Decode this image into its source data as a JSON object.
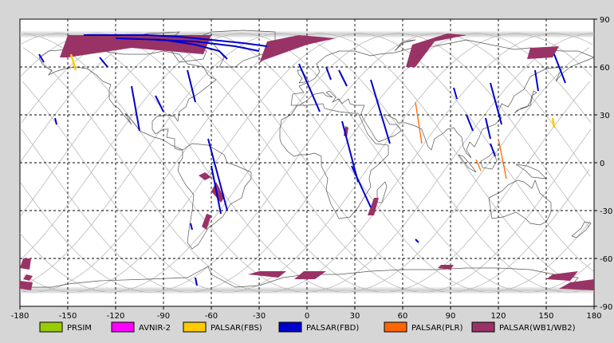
{
  "map": {
    "lon_range": [
      -180,
      180
    ],
    "lat_range": [
      -90,
      90
    ],
    "x_ticks": [
      -180,
      -150,
      -120,
      -90,
      -60,
      -30,
      0,
      30,
      60,
      90,
      120,
      150,
      180
    ],
    "y_ticks": [
      90,
      60,
      30,
      0,
      -30,
      -60,
      -90
    ],
    "grid": "dashed",
    "background": "#ffffff",
    "coastline_color": "#555555",
    "orbit_color": "#b8b8b8"
  },
  "legend": {
    "placement": "bottom",
    "items": [
      {
        "label": "PRSIM",
        "color": "#99cc00"
      },
      {
        "label": "AVNIR-2",
        "color": "#ff00ff"
      },
      {
        "label": "PALSAR(FBS)",
        "color": "#ffcc00"
      },
      {
        "label": "PALSAR(FBD)",
        "color": "#0000cc"
      },
      {
        "label": "PALSAR(PLR)",
        "color": "#ff6600"
      },
      {
        "label": "PALSAR(WB1/WB2)",
        "color": "#993366"
      }
    ]
  },
  "observations": {
    "wb": [
      [
        [
          -155,
          66
        ],
        [
          -150,
          80
        ],
        [
          -60,
          80
        ],
        [
          -65,
          68
        ],
        [
          -110,
          72
        ],
        [
          -150,
          66
        ]
      ],
      [
        [
          -30,
          62
        ],
        [
          -25,
          76
        ],
        [
          -5,
          80
        ],
        [
          18,
          78
        ],
        [
          0,
          74
        ],
        [
          -28,
          64
        ]
      ],
      [
        [
          62,
          60
        ],
        [
          66,
          74
        ],
        [
          88,
          81
        ],
        [
          100,
          80
        ],
        [
          80,
          76
        ],
        [
          68,
          60
        ]
      ],
      [
        [
          138,
          65
        ],
        [
          140,
          72
        ],
        [
          158,
          73
        ],
        [
          154,
          66
        ]
      ],
      [
        [
          -180,
          -66
        ],
        [
          -178,
          -60
        ],
        [
          -173,
          -60
        ],
        [
          -174,
          -67
        ]
      ],
      [
        [
          -180,
          -79
        ],
        [
          -180,
          -74
        ],
        [
          -172,
          -75
        ],
        [
          -173,
          -80
        ]
      ],
      [
        [
          -37,
          -70
        ],
        [
          -30,
          -68
        ],
        [
          -13,
          -68
        ],
        [
          -18,
          -72
        ]
      ],
      [
        [
          -8,
          -73
        ],
        [
          -2,
          -68
        ],
        [
          12,
          -68
        ],
        [
          5,
          -73
        ]
      ],
      [
        [
          -60,
          -18
        ],
        [
          -57,
          -12
        ],
        [
          -52,
          -22
        ],
        [
          -54,
          -25
        ]
      ],
      [
        [
          -66,
          -40
        ],
        [
          -63,
          -32
        ],
        [
          -60,
          -33
        ],
        [
          -63,
          -42
        ]
      ],
      [
        [
          38,
          -33
        ],
        [
          42,
          -22
        ],
        [
          45,
          -22
        ],
        [
          42,
          -33
        ]
      ],
      [
        [
          150,
          -73
        ],
        [
          154,
          -70
        ],
        [
          170,
          -68
        ],
        [
          165,
          -74
        ]
      ],
      [
        [
          158,
          -79
        ],
        [
          165,
          -75
        ],
        [
          180,
          -73
        ],
        [
          180,
          -80
        ]
      ],
      [
        [
          -68,
          -8
        ],
        [
          -64,
          -6
        ],
        [
          -60,
          -9
        ],
        [
          -64,
          -11
        ]
      ],
      [
        [
          82,
          -66
        ],
        [
          84,
          -64
        ],
        [
          92,
          -64
        ],
        [
          90,
          -67
        ]
      ],
      [
        [
          23,
          17
        ],
        [
          24,
          23
        ],
        [
          26,
          22
        ],
        [
          25,
          16
        ]
      ],
      [
        [
          -178,
          -73
        ],
        [
          -176,
          -70
        ],
        [
          -172,
          -71
        ],
        [
          -174,
          -74
        ]
      ]
    ],
    "fbd": [
      [
        [
          -140,
          80
        ],
        [
          -100,
          80
        ],
        [
          -80,
          79
        ],
        [
          -60,
          77
        ],
        [
          -40,
          75
        ],
        [
          -25,
          73
        ]
      ],
      [
        [
          -120,
          78
        ],
        [
          -90,
          77
        ],
        [
          -70,
          74
        ],
        [
          -55,
          70
        ],
        [
          -50,
          65
        ]
      ],
      [
        [
          -95,
          77
        ],
        [
          -70,
          76
        ],
        [
          -45,
          73
        ],
        [
          -30,
          70
        ]
      ],
      [
        [
          -130,
          66
        ],
        [
          -125,
          60
        ]
      ],
      [
        [
          -75,
          58
        ],
        [
          -70,
          38
        ]
      ],
      [
        [
          -95,
          42
        ],
        [
          -90,
          32
        ]
      ],
      [
        [
          -110,
          48
        ],
        [
          -105,
          20
        ]
      ],
      [
        [
          -62,
          15
        ],
        [
          -50,
          -30
        ]
      ],
      [
        [
          -60,
          -2
        ],
        [
          -54,
          -32
        ]
      ],
      [
        [
          -70,
          -72
        ],
        [
          -69,
          -77
        ]
      ],
      [
        [
          -158,
          28
        ],
        [
          -157,
          24
        ]
      ],
      [
        [
          -168,
          68
        ],
        [
          -165,
          63
        ]
      ],
      [
        [
          -5,
          62
        ],
        [
          8,
          32
        ]
      ],
      [
        [
          20,
          58
        ],
        [
          25,
          48
        ]
      ],
      [
        [
          40,
          52
        ],
        [
          52,
          12
        ]
      ],
      [
        [
          28,
          -2
        ],
        [
          40,
          -28
        ]
      ],
      [
        [
          22,
          26
        ],
        [
          32,
          -12
        ]
      ],
      [
        [
          68,
          -48
        ],
        [
          70,
          -50
        ]
      ],
      [
        [
          92,
          47
        ],
        [
          94,
          40
        ]
      ],
      [
        [
          115,
          50
        ],
        [
          122,
          24
        ]
      ],
      [
        [
          100,
          30
        ],
        [
          104,
          20
        ]
      ],
      [
        [
          143,
          58
        ],
        [
          145,
          45
        ]
      ],
      [
        [
          155,
          68
        ],
        [
          162,
          50
        ]
      ],
      [
        [
          112,
          28
        ],
        [
          115,
          15
        ]
      ],
      [
        [
          115,
          12
        ],
        [
          118,
          4
        ]
      ],
      [
        [
          -73,
          -38
        ],
        [
          -72,
          -42
        ]
      ],
      [
        [
          12,
          60
        ],
        [
          15,
          52
        ]
      ]
    ],
    "fbs": [
      [
        [
          -148,
          68
        ],
        [
          -145,
          58
        ]
      ],
      [
        [
          154,
          28
        ],
        [
          155,
          22
        ]
      ]
    ],
    "plr": [
      [
        [
          68,
          38
        ],
        [
          72,
          12
        ]
      ],
      [
        [
          120,
          15
        ],
        [
          125,
          -10
        ]
      ],
      [
        [
          106,
          2
        ],
        [
          109,
          -5
        ]
      ]
    ]
  }
}
